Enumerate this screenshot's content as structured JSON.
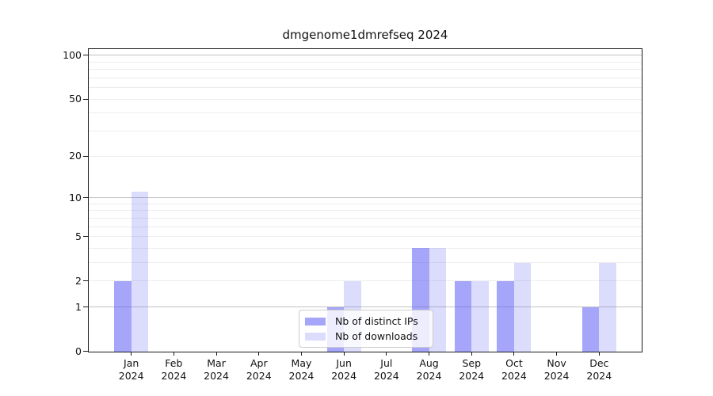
{
  "chart_data": {
    "type": "bar",
    "title": "dmgenome1dmrefseq 2024",
    "categories": [
      "Jan",
      "Feb",
      "Mar",
      "Apr",
      "May",
      "Jun",
      "Jul",
      "Aug",
      "Sep",
      "Oct",
      "Nov",
      "Dec"
    ],
    "category_year": "2024",
    "series": [
      {
        "name": "Nb of distinct IPs",
        "color": "rgba(95,95,245,0.56)",
        "color_hex": "#a5a5f9",
        "values": [
          2,
          0,
          0,
          0,
          0,
          1,
          0,
          4,
          2,
          2,
          0,
          1
        ]
      },
      {
        "name": "Nb of downloads",
        "color": "rgba(95,95,245,0.22)",
        "color_hex": "#dbdbfc",
        "values": [
          11,
          0,
          0,
          0,
          0,
          2,
          0,
          4,
          2,
          3,
          0,
          3
        ]
      }
    ],
    "xlabel": "",
    "ylabel": "",
    "y_scale": "log1p",
    "ylim": [
      0,
      110
    ],
    "y_ticks": [
      0,
      1,
      2,
      5,
      10,
      20,
      50,
      100
    ],
    "y_major_gridlines": [
      1,
      10,
      100
    ],
    "y_minor_gridlines": [
      2,
      3,
      4,
      5,
      6,
      7,
      8,
      9,
      20,
      30,
      40,
      50,
      60,
      70,
      80,
      90
    ],
    "grid": "horizontal",
    "legend_position": "lower center",
    "colors": {
      "spine": "#1a1a1a",
      "grid_major": "#c2c2c2",
      "grid_minor": "#ededed",
      "text": "#111111",
      "legend_border": "#cccccc"
    }
  }
}
